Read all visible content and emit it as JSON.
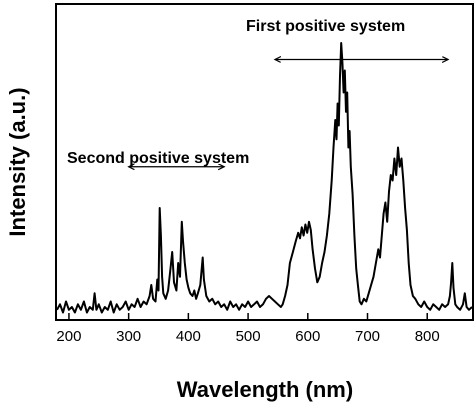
{
  "chart_data": {
    "type": "line",
    "title": "",
    "xlabel": "Wavelength (nm)",
    "ylabel": "Intensity (a.u.)",
    "xlim": [
      180,
      875
    ],
    "ylim": [
      0,
      1
    ],
    "x_ticks": [
      200,
      300,
      400,
      500,
      600,
      700,
      800
    ],
    "y_ticks": [],
    "grid": false,
    "legend": "none",
    "annotations": [
      {
        "text": "Second positive system",
        "arrow_x": [
          300,
          460
        ],
        "arrow_y": 0.55
      },
      {
        "text": "First positive system",
        "arrow_x": [
          545,
          835
        ],
        "arrow_y": 0.94
      }
    ],
    "series": [
      {
        "color": "#000000",
        "points": [
          [
            180,
            0.03
          ],
          [
            185,
            0.05
          ],
          [
            190,
            0.02
          ],
          [
            195,
            0.06
          ],
          [
            200,
            0.03
          ],
          [
            205,
            0.04
          ],
          [
            210,
            0.02
          ],
          [
            215,
            0.05
          ],
          [
            220,
            0.03
          ],
          [
            225,
            0.06
          ],
          [
            230,
            0.02
          ],
          [
            235,
            0.04
          ],
          [
            240,
            0.03
          ],
          [
            243,
            0.09
          ],
          [
            246,
            0.03
          ],
          [
            250,
            0.05
          ],
          [
            255,
            0.02
          ],
          [
            260,
            0.04
          ],
          [
            265,
            0.03
          ],
          [
            270,
            0.06
          ],
          [
            275,
            0.02
          ],
          [
            280,
            0.05
          ],
          [
            285,
            0.03
          ],
          [
            290,
            0.04
          ],
          [
            295,
            0.06
          ],
          [
            300,
            0.03
          ],
          [
            305,
            0.05
          ],
          [
            310,
            0.04
          ],
          [
            315,
            0.07
          ],
          [
            320,
            0.04
          ],
          [
            325,
            0.06
          ],
          [
            330,
            0.05
          ],
          [
            335,
            0.08
          ],
          [
            338,
            0.12
          ],
          [
            341,
            0.07
          ],
          [
            345,
            0.06
          ],
          [
            348,
            0.14
          ],
          [
            350,
            0.1
          ],
          [
            352,
            0.4
          ],
          [
            354,
            0.3
          ],
          [
            356,
            0.15
          ],
          [
            358,
            0.09
          ],
          [
            362,
            0.07
          ],
          [
            366,
            0.1
          ],
          [
            370,
            0.18
          ],
          [
            373,
            0.24
          ],
          [
            376,
            0.13
          ],
          [
            380,
            0.1
          ],
          [
            383,
            0.2
          ],
          [
            386,
            0.15
          ],
          [
            389,
            0.35
          ],
          [
            391,
            0.28
          ],
          [
            394,
            0.2
          ],
          [
            397,
            0.14
          ],
          [
            400,
            0.11
          ],
          [
            403,
            0.09
          ],
          [
            407,
            0.08
          ],
          [
            410,
            0.1
          ],
          [
            413,
            0.07
          ],
          [
            416,
            0.09
          ],
          [
            420,
            0.12
          ],
          [
            424,
            0.22
          ],
          [
            426,
            0.14
          ],
          [
            430,
            0.08
          ],
          [
            435,
            0.06
          ],
          [
            440,
            0.07
          ],
          [
            445,
            0.05
          ],
          [
            450,
            0.06
          ],
          [
            455,
            0.04
          ],
          [
            460,
            0.05
          ],
          [
            465,
            0.03
          ],
          [
            470,
            0.06
          ],
          [
            475,
            0.04
          ],
          [
            480,
            0.05
          ],
          [
            485,
            0.03
          ],
          [
            490,
            0.05
          ],
          [
            495,
            0.04
          ],
          [
            500,
            0.06
          ],
          [
            505,
            0.04
          ],
          [
            510,
            0.05
          ],
          [
            515,
            0.06
          ],
          [
            520,
            0.04
          ],
          [
            525,
            0.05
          ],
          [
            530,
            0.07
          ],
          [
            535,
            0.08
          ],
          [
            540,
            0.07
          ],
          [
            545,
            0.06
          ],
          [
            550,
            0.05
          ],
          [
            555,
            0.04
          ],
          [
            558,
            0.05
          ],
          [
            562,
            0.08
          ],
          [
            566,
            0.12
          ],
          [
            570,
            0.2
          ],
          [
            575,
            0.24
          ],
          [
            580,
            0.28
          ],
          [
            584,
            0.31
          ],
          [
            587,
            0.29
          ],
          [
            590,
            0.33
          ],
          [
            593,
            0.3
          ],
          [
            596,
            0.34
          ],
          [
            599,
            0.31
          ],
          [
            602,
            0.35
          ],
          [
            605,
            0.32
          ],
          [
            608,
            0.25
          ],
          [
            612,
            0.18
          ],
          [
            616,
            0.13
          ],
          [
            620,
            0.15
          ],
          [
            624,
            0.2
          ],
          [
            628,
            0.24
          ],
          [
            632,
            0.3
          ],
          [
            636,
            0.38
          ],
          [
            640,
            0.5
          ],
          [
            643,
            0.62
          ],
          [
            646,
            0.72
          ],
          [
            648,
            0.65
          ],
          [
            650,
            0.78
          ],
          [
            652,
            0.7
          ],
          [
            654,
            0.88
          ],
          [
            656,
            1.0
          ],
          [
            658,
            0.93
          ],
          [
            660,
            0.82
          ],
          [
            662,
            0.9
          ],
          [
            664,
            0.75
          ],
          [
            666,
            0.82
          ],
          [
            668,
            0.62
          ],
          [
            670,
            0.68
          ],
          [
            672,
            0.55
          ],
          [
            675,
            0.45
          ],
          [
            678,
            0.3
          ],
          [
            681,
            0.18
          ],
          [
            684,
            0.12
          ],
          [
            687,
            0.06
          ],
          [
            690,
            0.05
          ],
          [
            694,
            0.07
          ],
          [
            698,
            0.06
          ],
          [
            702,
            0.09
          ],
          [
            706,
            0.12
          ],
          [
            710,
            0.15
          ],
          [
            714,
            0.2
          ],
          [
            718,
            0.25
          ],
          [
            721,
            0.22
          ],
          [
            724,
            0.3
          ],
          [
            727,
            0.38
          ],
          [
            730,
            0.42
          ],
          [
            733,
            0.35
          ],
          [
            736,
            0.46
          ],
          [
            739,
            0.52
          ],
          [
            742,
            0.5
          ],
          [
            745,
            0.58
          ],
          [
            748,
            0.52
          ],
          [
            751,
            0.62
          ],
          [
            754,
            0.55
          ],
          [
            757,
            0.58
          ],
          [
            760,
            0.5
          ],
          [
            763,
            0.4
          ],
          [
            766,
            0.32
          ],
          [
            769,
            0.2
          ],
          [
            772,
            0.12
          ],
          [
            776,
            0.08
          ],
          [
            780,
            0.07
          ],
          [
            785,
            0.05
          ],
          [
            790,
            0.04
          ],
          [
            795,
            0.06
          ],
          [
            800,
            0.04
          ],
          [
            805,
            0.03
          ],
          [
            810,
            0.05
          ],
          [
            815,
            0.04
          ],
          [
            820,
            0.03
          ],
          [
            825,
            0.05
          ],
          [
            830,
            0.04
          ],
          [
            835,
            0.05
          ],
          [
            838,
            0.08
          ],
          [
            840,
            0.13
          ],
          [
            842,
            0.2
          ],
          [
            844,
            0.11
          ],
          [
            847,
            0.05
          ],
          [
            850,
            0.04
          ],
          [
            855,
            0.03
          ],
          [
            860,
            0.05
          ],
          [
            863,
            0.09
          ],
          [
            866,
            0.04
          ],
          [
            870,
            0.03
          ],
          [
            875,
            0.04
          ]
        ]
      }
    ]
  }
}
